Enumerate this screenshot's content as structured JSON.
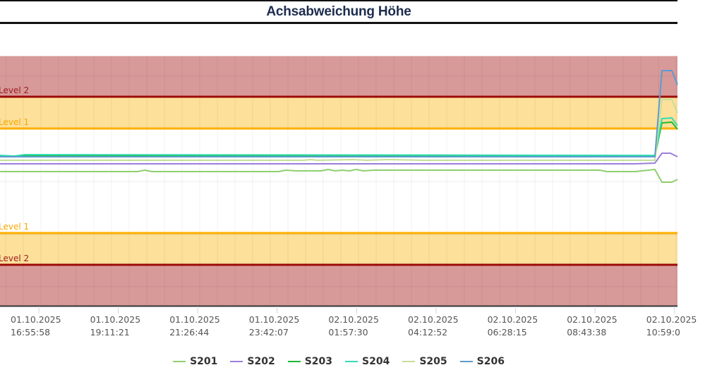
{
  "title": "Achsabweichung Höhe",
  "colors": {
    "level2_band": "#d89999",
    "level1_band": "#fde09a",
    "level2_line": "#9b0a0a",
    "level1_line": "#ffb000",
    "level2_label": "#9b1c1c",
    "level1_label": "#f5a800",
    "grid": "#e8e8e8"
  },
  "bands": {
    "upper_level2_label": "Level 2",
    "upper_level1_label": "Level 1",
    "lower_level1_label": "Level 1",
    "lower_level2_label": "Level 2"
  },
  "x_ticks": [
    {
      "date": "01.10.2025",
      "time": "16:55:58"
    },
    {
      "date": "01.10.2025",
      "time": "19:11:21"
    },
    {
      "date": "01.10.2025",
      "time": "21:26:44"
    },
    {
      "date": "01.10.2025",
      "time": "23:42:07"
    },
    {
      "date": "02.10.2025",
      "time": "01:57:30"
    },
    {
      "date": "02.10.2025",
      "time": "04:12:52"
    },
    {
      "date": "02.10.2025",
      "time": "06:28:15"
    },
    {
      "date": "02.10.2025",
      "time": "08:43:38"
    },
    {
      "date": "02.10.2025",
      "time": "10:59:0"
    }
  ],
  "legend": [
    {
      "name": "S201",
      "color": "#8fcf6f"
    },
    {
      "name": "S202",
      "color": "#9b7fd9"
    },
    {
      "name": "S203",
      "color": "#1fb832"
    },
    {
      "name": "S204",
      "color": "#33dcb0"
    },
    {
      "name": "S205",
      "color": "#c5e09a"
    },
    {
      "name": "S206",
      "color": "#5b9ccf"
    }
  ],
  "chart_data": {
    "type": "line",
    "title": "Achsabweichung Höhe",
    "xlabel": "",
    "ylabel": "",
    "x_tick_labels": [
      "01.10.2025 16:55:58",
      "01.10.2025 19:11:21",
      "01.10.2025 21:26:44",
      "01.10.2025 23:42:07",
      "02.10.2025 01:57:30",
      "02.10.2025 04:12:52",
      "02.10.2025 06:28:15",
      "02.10.2025 08:43:38",
      "02.10.2025 10:59:0"
    ],
    "grid": true,
    "legend_position": "bottom",
    "thresholds": [
      {
        "label": "Level 2",
        "position": "upper",
        "color": "#9b0a0a"
      },
      {
        "label": "Level 1",
        "position": "upper",
        "color": "#ffb000"
      },
      {
        "label": "Level 1",
        "position": "lower",
        "color": "#ffb000"
      },
      {
        "label": "Level 2",
        "position": "lower",
        "color": "#9b0a0a"
      }
    ],
    "series_note": "Values in screen-y pixels (chart has no y tick labels). x in screen pixels.",
    "series": [
      {
        "name": "S201",
        "color": "#8fcf6f",
        "points": [
          [
            0,
            243
          ],
          [
            195,
            243
          ],
          [
            205,
            241
          ],
          [
            215,
            243
          ],
          [
            395,
            243
          ],
          [
            405,
            241
          ],
          [
            420,
            242
          ],
          [
            440,
            242
          ],
          [
            455,
            242
          ],
          [
            465,
            240
          ],
          [
            475,
            242
          ],
          [
            485,
            241
          ],
          [
            495,
            242
          ],
          [
            505,
            240
          ],
          [
            515,
            242
          ],
          [
            530,
            241
          ],
          [
            700,
            241
          ],
          [
            850,
            241
          ],
          [
            860,
            243
          ],
          [
            900,
            243
          ],
          [
            928,
            240
          ],
          [
            938,
            258
          ],
          [
            952,
            258
          ],
          [
            960,
            254
          ]
        ]
      },
      {
        "name": "S202",
        "color": "#9b7fd9",
        "points": [
          [
            0,
            232
          ],
          [
            900,
            232
          ],
          [
            928,
            231
          ],
          [
            938,
            217
          ],
          [
            950,
            217
          ],
          [
            960,
            222
          ]
        ]
      },
      {
        "name": "S203",
        "color": "#1fb832",
        "points": [
          [
            0,
            221
          ],
          [
            928,
            221
          ],
          [
            938,
            174
          ],
          [
            952,
            173
          ],
          [
            960,
            183
          ]
        ]
      },
      {
        "name": "S204",
        "color": "#33dcb0",
        "points": [
          [
            0,
            220
          ],
          [
            20,
            221
          ],
          [
            35,
            219
          ],
          [
            928,
            220
          ],
          [
            938,
            168
          ],
          [
            952,
            167
          ],
          [
            960,
            178
          ]
        ]
      },
      {
        "name": "S205",
        "color": "#c5e09a",
        "points": [
          [
            0,
            227
          ],
          [
            430,
            227
          ],
          [
            440,
            226
          ],
          [
            450,
            227
          ],
          [
            500,
            226
          ],
          [
            520,
            227
          ],
          [
            550,
            226
          ],
          [
            600,
            227
          ],
          [
            900,
            227
          ],
          [
            928,
            227
          ],
          [
            938,
            141
          ],
          [
            952,
            141
          ],
          [
            960,
            160
          ]
        ]
      },
      {
        "name": "S206",
        "color": "#5b9ccf",
        "points": [
          [
            0,
            222
          ],
          [
            928,
            222
          ],
          [
            938,
            100
          ],
          [
            952,
            100
          ],
          [
            960,
            120
          ]
        ]
      }
    ]
  }
}
